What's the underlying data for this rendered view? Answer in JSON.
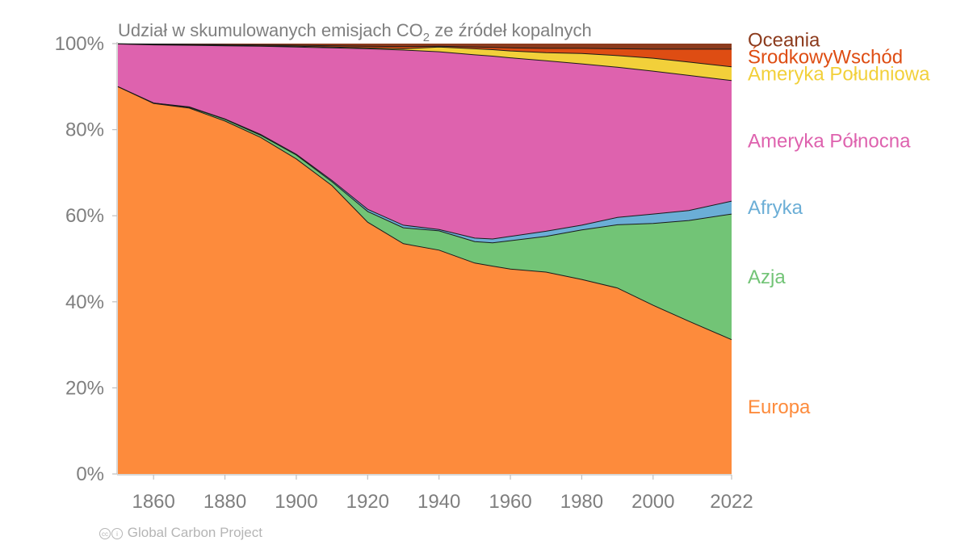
{
  "chart_data": {
    "type": "area",
    "stacked": true,
    "normalized": true,
    "title": "Udział w skumulowanych emisjach CO₂ ze źródeł kopalnych",
    "title_parts": {
      "before": "Udział w skumulowanych emisjach CO",
      "subscript": "2",
      "after": " ze źródeł kopalnych"
    },
    "xlabel": "",
    "ylabel": "",
    "xlim": [
      1850,
      2022
    ],
    "ylim": [
      0,
      100
    ],
    "x_ticks": [
      1860,
      1880,
      1900,
      1920,
      1940,
      1960,
      1980,
      2000,
      2022
    ],
    "y_ticks": [
      0,
      20,
      40,
      60,
      80,
      100
    ],
    "y_tick_labels": [
      "0%",
      "20%",
      "40%",
      "60%",
      "80%",
      "100%"
    ],
    "grid": false,
    "legend_placement": "right (direct labels)",
    "x": [
      1850,
      1860,
      1870,
      1880,
      1890,
      1900,
      1910,
      1920,
      1930,
      1940,
      1950,
      1955,
      1960,
      1970,
      1980,
      1990,
      2000,
      2010,
      2022
    ],
    "series": [
      {
        "name": "Europa",
        "color": "#fd8b3c",
        "values": [
          90.0,
          86.1,
          85.0,
          82.0,
          78.2,
          73.2,
          67.0,
          58.5,
          53.5,
          52.0,
          49.0,
          48.3,
          47.6,
          46.9,
          45.2,
          43.2,
          39.2,
          35.5,
          31.2
        ]
      },
      {
        "name": "Azja",
        "color": "#72c476",
        "values": [
          0.0,
          0.1,
          0.2,
          0.4,
          0.5,
          0.9,
          0.9,
          2.5,
          3.7,
          4.5,
          5.0,
          5.4,
          6.6,
          8.3,
          11.5,
          14.7,
          19.0,
          23.4,
          29.2
        ]
      },
      {
        "name": "Afryka",
        "color": "#6baed6",
        "values": [
          0.0,
          0.0,
          0.1,
          0.1,
          0.2,
          0.2,
          0.3,
          0.5,
          0.6,
          0.3,
          0.8,
          0.9,
          1.0,
          1.2,
          1.1,
          1.7,
          2.2,
          2.3,
          3.0
        ]
      },
      {
        "name": "Ameryka Północna",
        "color": "#de62ae",
        "values": [
          9.9,
          13.5,
          14.3,
          17.0,
          20.5,
          24.9,
          30.8,
          37.3,
          40.7,
          41.3,
          42.6,
          42.5,
          41.5,
          39.6,
          37.5,
          34.9,
          33.2,
          31.4,
          28.0
        ]
      },
      {
        "name": "Ameryka Południowa",
        "color": "#f2d03a",
        "values": [
          0.05,
          0.1,
          0.1,
          0.1,
          0.1,
          0.2,
          0.2,
          0.2,
          0.3,
          1.1,
          1.4,
          1.5,
          1.6,
          1.9,
          2.4,
          2.7,
          3.0,
          3.1,
          3.2
        ]
      },
      {
        "name": "ŚrodkowyWschód",
        "color": "#de4d13",
        "values": [
          0.02,
          0.1,
          0.15,
          0.2,
          0.2,
          0.2,
          0.3,
          0.4,
          0.5,
          0.2,
          0.4,
          0.5,
          0.7,
          1.0,
          1.2,
          1.6,
          2.1,
          3.0,
          4.1
        ]
      },
      {
        "name": "Oceania",
        "color": "#8c3b1d",
        "values": [
          0.03,
          0.1,
          0.15,
          0.2,
          0.3,
          0.4,
          0.5,
          0.6,
          0.7,
          0.6,
          0.8,
          0.9,
          1.0,
          1.1,
          1.1,
          1.2,
          1.3,
          1.3,
          1.3
        ]
      }
    ],
    "direct_labels": [
      {
        "name": "Oceania",
        "color": "#8c3b1d"
      },
      {
        "name": "ŚrodkowyWschód",
        "color": "#de4d13"
      },
      {
        "name": "Ameryka Południowa",
        "color": "#f2d03a"
      },
      {
        "name": "Ameryka Północna",
        "color": "#de62ae"
      },
      {
        "name": "Afryka",
        "color": "#6baed6"
      },
      {
        "name": "Azja",
        "color": "#72c476"
      },
      {
        "name": "Europa",
        "color": "#fd8b3c"
      }
    ]
  },
  "footer": {
    "credit_icon": "cc-by-icon",
    "credit_text": "Global Carbon Project"
  }
}
